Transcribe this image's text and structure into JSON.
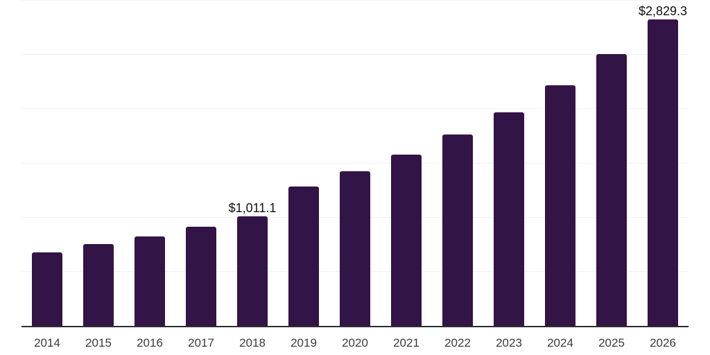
{
  "chart_data": {
    "type": "bar",
    "title": "",
    "xlabel": "",
    "ylabel": "",
    "categories": [
      "2014",
      "2015",
      "2016",
      "2017",
      "2018",
      "2019",
      "2020",
      "2021",
      "2022",
      "2023",
      "2024",
      "2025",
      "2026"
    ],
    "values": [
      680,
      752,
      827,
      914,
      1011.1,
      1285,
      1429,
      1581,
      1766,
      1971,
      2222,
      2506,
      2829.3
    ],
    "data_labels": {
      "2018": "$1,011.1",
      "2026": "$2,829.3"
    },
    "ylim": [
      0,
      3000
    ],
    "gridline_step": 500,
    "grid": "horizontal",
    "y_tick_labels_visible": false,
    "legend_position": "none",
    "colors": {
      "bar": "#331446",
      "gridline": "#f2f2f2",
      "axis_line": "#2d2d2d",
      "tick_label": "#3b3b3b",
      "data_label": "#111111",
      "background": "#ffffff"
    }
  }
}
